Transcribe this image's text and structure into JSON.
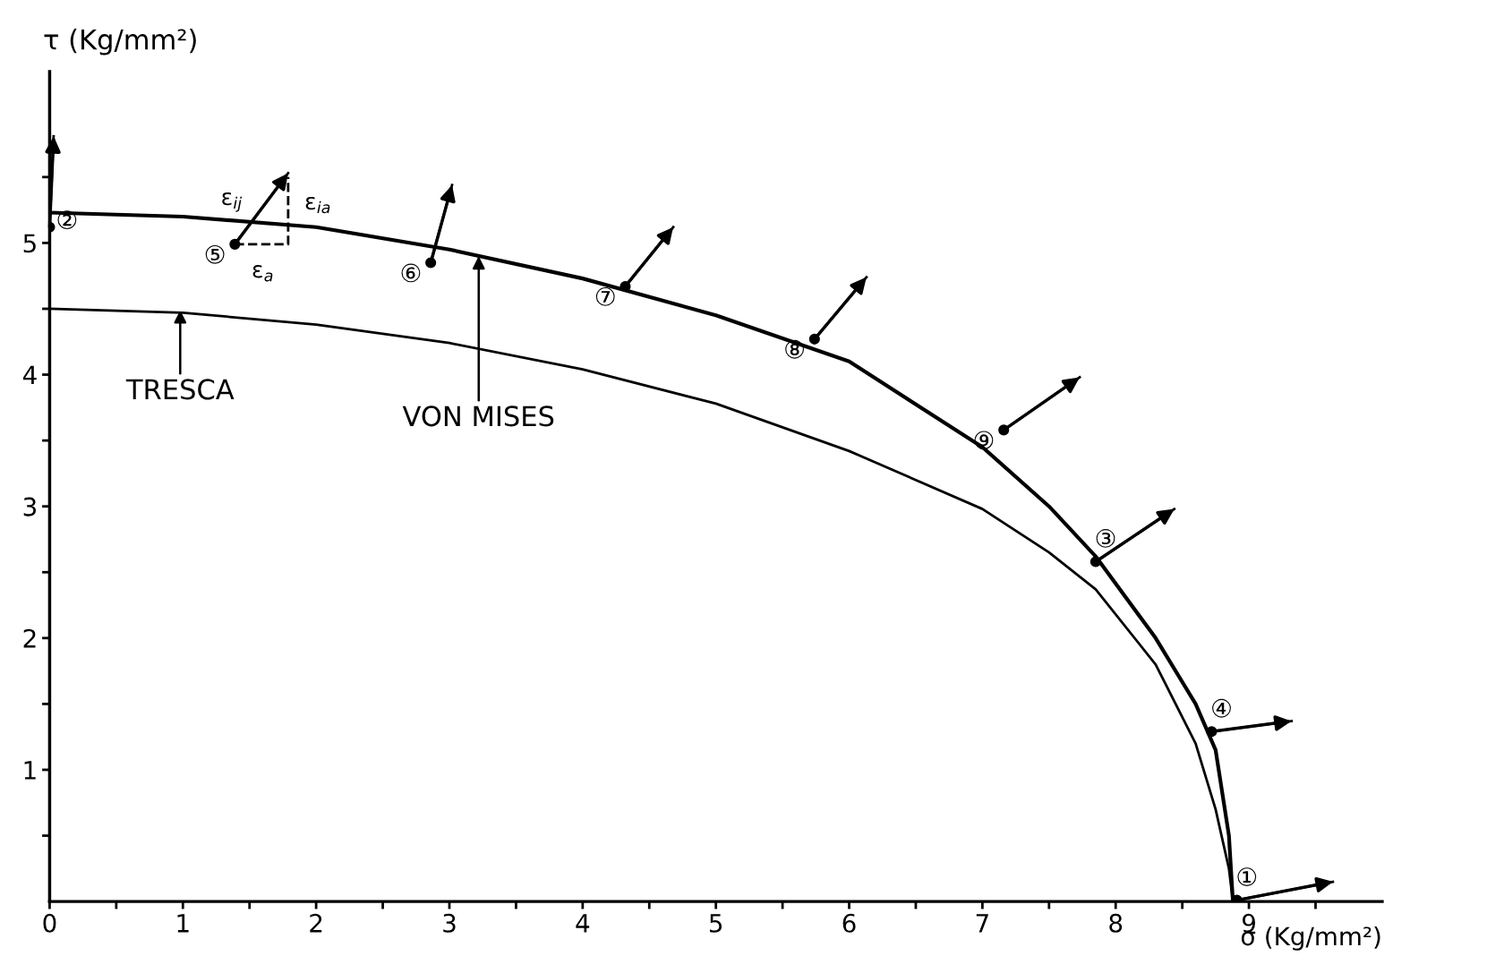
{
  "chart_data": {
    "type": "line",
    "xlabel": "σ (Kg/mm²)",
    "ylabel": "τ (Kg/mm²)",
    "xlim": [
      0,
      10
    ],
    "ylim": [
      0,
      6.3
    ],
    "xticks": [
      0,
      {
        "value": 0.5,
        "label": null
      },
      1,
      {
        "value": 1.5,
        "label": null
      },
      2,
      {
        "value": 2.5,
        "label": null
      },
      3,
      {
        "value": 3.5,
        "label": null
      },
      4,
      {
        "value": 4.5,
        "label": null
      },
      5,
      {
        "value": 5.5,
        "label": null
      },
      6,
      {
        "value": 6.5,
        "label": null
      },
      7,
      {
        "value": 7.5,
        "label": null
      },
      8,
      {
        "value": 8.5,
        "label": null
      },
      9,
      {
        "value": 9.5,
        "label": null
      }
    ],
    "yticks": [
      {
        "value": 0.5,
        "label": null
      },
      1,
      {
        "value": 1.5,
        "label": null
      },
      2,
      {
        "value": 2.5,
        "label": null
      },
      3,
      {
        "value": 3.5,
        "label": null
      },
      4,
      {
        "value": 4.5,
        "label": null
      },
      5,
      {
        "value": 5.5,
        "label": null
      }
    ],
    "grid": false,
    "legend": false,
    "series": [
      {
        "color": "#000000",
        "x": [
          0,
          1,
          2,
          3,
          4,
          5,
          6,
          7,
          7.5,
          7.85,
          8.3,
          8.6,
          8.75,
          8.85,
          8.88
        ],
        "values": [
          5.23,
          5.2,
          5.12,
          4.95,
          4.73,
          4.45,
          4.1,
          3.45,
          3.0,
          2.62,
          2.0,
          1.5,
          1.15,
          0.5,
          0
        ]
      },
      {
        "color": "#000000",
        "x": [
          0,
          1,
          2,
          3,
          4,
          5,
          6,
          7,
          7.5,
          7.85,
          8.3,
          8.6,
          8.75,
          8.85,
          8.88
        ],
        "values": [
          4.5,
          4.47,
          4.38,
          4.24,
          4.04,
          3.78,
          3.42,
          2.98,
          2.65,
          2.37,
          1.8,
          1.2,
          0.7,
          0.25,
          0
        ]
      },
      {
        "type": "scatter",
        "color": "#000000",
        "marker": "circle",
        "x": [
          8.91,
          0,
          7.85,
          8.72,
          1.39,
          2.86,
          4.32,
          5.74,
          7.16
        ],
        "values": [
          0.01,
          5.12,
          2.58,
          1.29,
          4.99,
          4.85,
          4.67,
          4.27,
          3.58
        ]
      },
      {
        "type": "line",
        "color": "#000000",
        "x": [
          0,
          0.03
        ],
        "values": [
          5.12,
          5.81
        ]
      },
      {
        "type": "line",
        "color": "#000000",
        "x": [
          1.39,
          1.79
        ],
        "values": [
          4.99,
          5.53
        ]
      },
      {
        "type": "line",
        "color": "#000000",
        "line_style": "dashed",
        "x": [
          1.39,
          1.79,
          1.79
        ],
        "values": [
          4.99,
          4.99,
          5.5
        ]
      },
      {
        "type": "line",
        "color": "#000000",
        "x": [
          2.86,
          3.02
        ],
        "values": [
          4.85,
          5.44
        ]
      },
      {
        "type": "line",
        "color": "#000000",
        "x": [
          4.32,
          4.68
        ],
        "values": [
          4.67,
          5.12
        ]
      },
      {
        "type": "line",
        "color": "#000000",
        "x": [
          5.74,
          6.13
        ],
        "values": [
          4.27,
          4.74
        ]
      },
      {
        "type": "line",
        "color": "#000000",
        "x": [
          7.16,
          7.73
        ],
        "values": [
          3.58,
          3.98
        ]
      },
      {
        "type": "line",
        "color": "#000000",
        "x": [
          7.85,
          8.44
        ],
        "values": [
          2.58,
          2.98
        ]
      },
      {
        "type": "line",
        "color": "#000000",
        "x": [
          8.72,
          9.32
        ],
        "values": [
          1.29,
          1.37
        ]
      },
      {
        "type": "line",
        "color": "#000000",
        "x": [
          8.91,
          9.63
        ],
        "values": [
          0.01,
          0.15
        ]
      }
    ],
    "annotations": [
      {
        "text": "TRESCA",
        "x": 0.98,
        "y": 4.49
      },
      {
        "text": "VON MISES",
        "x": 3.22,
        "y": 4.9
      },
      {
        "text": "①",
        "x": 8.91,
        "y": 0.01
      },
      {
        "text": "②",
        "x": 0,
        "y": 5.12
      },
      {
        "text": "③",
        "x": 7.85,
        "y": 2.58
      },
      {
        "text": "④",
        "x": 8.72,
        "y": 1.29
      },
      {
        "text": "⑤",
        "x": 1.39,
        "y": 4.99
      },
      {
        "text": "⑥",
        "x": 2.86,
        "y": 4.85
      },
      {
        "text": "⑦",
        "x": 4.32,
        "y": 4.67
      },
      {
        "text": "⑧",
        "x": 5.74,
        "y": 4.27
      },
      {
        "text": "⑨",
        "x": 7.16,
        "y": 3.58
      },
      {
        "text": "ε$_{ij}$",
        "x": 1.59,
        "y": 5.26
      },
      {
        "text": "ε$_{ia}$",
        "x": 1.79,
        "y": 5.3
      },
      {
        "text": "ε$_{a}$",
        "x": 1.6,
        "y": 4.99
      }
    ]
  }
}
